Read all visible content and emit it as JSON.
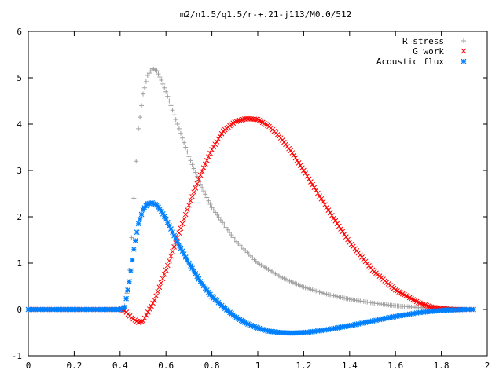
{
  "chart_data": {
    "type": "scatter",
    "title": "m2/n1.5/q1.5/r-+.21-j113/M0.0/512",
    "xlabel": "",
    "ylabel": "",
    "xlim": [
      0,
      2
    ],
    "ylim": [
      -1,
      6
    ],
    "xticks": [
      "0",
      "0.2",
      "0.4",
      "0.6",
      "0.8",
      "1",
      "1.2",
      "1.4",
      "1.6",
      "1.8",
      "2"
    ],
    "yticks": [
      "-1",
      "0",
      "1",
      "2",
      "3",
      "4",
      "5",
      "6"
    ],
    "grid": false,
    "legend_position": "top-right",
    "series": [
      {
        "name": "R stress",
        "marker": "plus",
        "color": "#a0a0a0",
        "x": [
          0.0,
          0.1,
          0.2,
          0.3,
          0.4,
          0.42,
          0.43,
          0.44,
          0.45,
          0.46,
          0.47,
          0.48,
          0.5,
          0.52,
          0.54,
          0.56,
          0.58,
          0.6,
          0.65,
          0.7,
          0.75,
          0.8,
          0.9,
          1.0,
          1.1,
          1.2,
          1.3,
          1.4,
          1.5,
          1.6,
          1.7,
          1.8,
          1.9,
          1.94
        ],
        "y": [
          0,
          0,
          0,
          0,
          0,
          0.08,
          0.35,
          0.85,
          1.55,
          2.4,
          3.2,
          3.9,
          4.65,
          5.05,
          5.2,
          5.15,
          4.95,
          4.7,
          4.0,
          3.3,
          2.7,
          2.2,
          1.5,
          1.0,
          0.7,
          0.48,
          0.33,
          0.22,
          0.14,
          0.08,
          0.04,
          0.02,
          0.0,
          0.0
        ]
      },
      {
        "name": "G work",
        "marker": "x",
        "color": "#ff0000",
        "x": [
          0.0,
          0.1,
          0.2,
          0.3,
          0.4,
          0.42,
          0.45,
          0.48,
          0.5,
          0.55,
          0.6,
          0.65,
          0.7,
          0.75,
          0.8,
          0.85,
          0.9,
          0.95,
          1.0,
          1.05,
          1.1,
          1.15,
          1.2,
          1.3,
          1.4,
          1.5,
          1.6,
          1.7,
          1.75,
          1.8,
          1.85,
          1.9,
          1.94
        ],
        "y": [
          0,
          0,
          0,
          0,
          0,
          -0.02,
          -0.18,
          -0.28,
          -0.25,
          0.2,
          0.85,
          1.55,
          2.25,
          2.9,
          3.45,
          3.85,
          4.05,
          4.12,
          4.1,
          3.95,
          3.7,
          3.38,
          3.0,
          2.2,
          1.45,
          0.85,
          0.42,
          0.15,
          0.06,
          0.02,
          0.0,
          0.0,
          0.0
        ]
      },
      {
        "name": "Acoustic flux",
        "marker": "star",
        "color": "#0080ff",
        "x": [
          0.0,
          0.1,
          0.2,
          0.3,
          0.4,
          0.42,
          0.44,
          0.46,
          0.48,
          0.5,
          0.52,
          0.54,
          0.56,
          0.58,
          0.6,
          0.65,
          0.7,
          0.75,
          0.8,
          0.85,
          0.9,
          0.95,
          1.0,
          1.05,
          1.1,
          1.15,
          1.2,
          1.3,
          1.4,
          1.5,
          1.6,
          1.7,
          1.8,
          1.9,
          1.94
        ],
        "y": [
          0,
          0,
          0,
          0,
          0,
          0.05,
          0.6,
          1.3,
          1.85,
          2.15,
          2.28,
          2.3,
          2.25,
          2.12,
          1.95,
          1.45,
          1.0,
          0.6,
          0.28,
          0.05,
          -0.15,
          -0.3,
          -0.4,
          -0.47,
          -0.5,
          -0.51,
          -0.5,
          -0.44,
          -0.35,
          -0.25,
          -0.15,
          -0.07,
          -0.02,
          0.0,
          0.0
        ]
      }
    ]
  }
}
